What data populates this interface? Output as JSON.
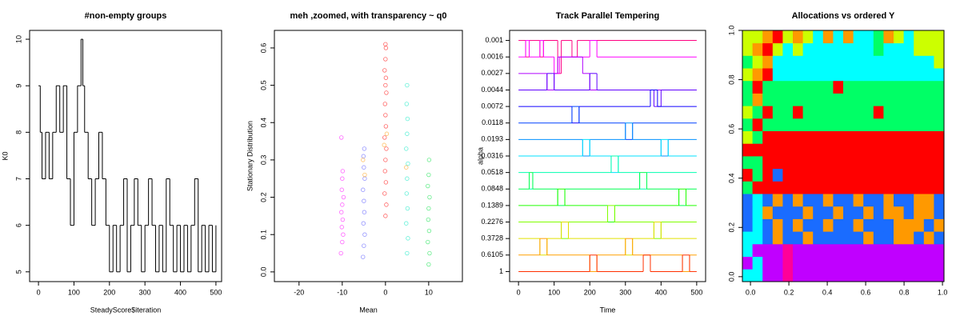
{
  "chart_data": [
    {
      "type": "line",
      "step": true,
      "title": "#non-empty groups",
      "x_label": "SteadyScore$iteration",
      "y_label": "K0",
      "color": "#000000",
      "x": [
        0,
        5,
        10,
        20,
        30,
        40,
        50,
        60,
        70,
        80,
        90,
        100,
        110,
        120,
        125,
        130,
        140,
        150,
        160,
        170,
        180,
        190,
        200,
        210,
        220,
        230,
        240,
        250,
        260,
        270,
        280,
        290,
        300,
        310,
        320,
        330,
        340,
        350,
        360,
        370,
        380,
        390,
        400,
        410,
        420,
        430,
        440,
        450,
        460,
        470,
        480,
        490,
        500
      ],
      "values": [
        9,
        8,
        7,
        8,
        7,
        8,
        9,
        8,
        9,
        7,
        6,
        8,
        9,
        10,
        9,
        8,
        7,
        6,
        7,
        8,
        7,
        6,
        5,
        6,
        5,
        6,
        7,
        5,
        6,
        7,
        6,
        5,
        6,
        7,
        6,
        5,
        6,
        5,
        7,
        6,
        5,
        6,
        5,
        6,
        5,
        6,
        7,
        5,
        6,
        5,
        6,
        5,
        6
      ],
      "xlim": [
        -25,
        516
      ],
      "ylim": [
        4.79,
        10.19
      ],
      "xticks": [
        0,
        100,
        200,
        300,
        400,
        500
      ],
      "yticks": [
        5,
        6,
        7,
        8,
        9,
        10
      ]
    },
    {
      "type": "scatter",
      "title": "meh ,zoomed, with transparency ~ q0",
      "x_label": "Mean",
      "y_label": "Stationary Distribution",
      "xlim": [
        -25.7,
        17.8
      ],
      "ylim": [
        -0.026,
        0.647
      ],
      "xticks": [
        -20,
        -10,
        0,
        10
      ],
      "yticks": [
        {
          "value": 0,
          "label": "0.0"
        },
        0.1,
        0.2,
        0.3,
        0.4,
        0.5,
        0.6
      ],
      "series": [
        {
          "color": "#ff00ff",
          "x": [
            -10.3,
            -10,
            -9.8,
            -10.1,
            -9.9,
            -10.2,
            -10,
            -9.7,
            -10.1,
            -10,
            -9.9,
            -10.2
          ],
          "values": [
            0.05,
            0.08,
            0.1,
            0.12,
            0.14,
            0.16,
            0.18,
            0.2,
            0.22,
            0.25,
            0.27,
            0.36
          ]
        },
        {
          "color": "#5050ff",
          "x": [
            -5.2,
            -5,
            -4.8,
            -5.1,
            -4.9,
            -5,
            -5.2,
            -4.8,
            -5,
            -5.1,
            -4.9
          ],
          "values": [
            0.04,
            0.07,
            0.1,
            0.13,
            0.16,
            0.19,
            0.22,
            0.25,
            0.28,
            0.31,
            0.33
          ]
        },
        {
          "color": "#ff0000",
          "x": [
            0,
            0.2,
            -0.2,
            0.1,
            -0.1,
            0,
            0.2,
            -0.2,
            0.1,
            0,
            -0.1,
            0.2,
            0,
            0.1,
            -0.2,
            0,
            0.1,
            0
          ],
          "values": [
            0.15,
            0.18,
            0.21,
            0.24,
            0.27,
            0.3,
            0.33,
            0.36,
            0.39,
            0.42,
            0.45,
            0.48,
            0.5,
            0.52,
            0.54,
            0.57,
            0.6,
            0.61
          ]
        },
        {
          "color": "#00e8c0",
          "x": [
            5,
            5.2,
            4.8,
            5.1,
            4.9,
            5,
            5.2,
            4.8,
            5,
            5.1,
            4.9,
            5
          ],
          "values": [
            0.05,
            0.09,
            0.13,
            0.17,
            0.21,
            0.25,
            0.29,
            0.33,
            0.37,
            0.41,
            0.45,
            0.5
          ]
        },
        {
          "color": "#00e040",
          "x": [
            10,
            10.2,
            9.8,
            10.1,
            9.9,
            10,
            10.2,
            9.8,
            10,
            10.1
          ],
          "values": [
            0.02,
            0.05,
            0.08,
            0.11,
            0.14,
            0.17,
            0.2,
            0.23,
            0.26,
            0.3
          ]
        },
        {
          "color": "#ff9900",
          "x": [
            -4.8,
            -5.2,
            0.3,
            -0.3,
            4.8
          ],
          "values": [
            0.26,
            0.3,
            0.37,
            0.34,
            0.28
          ]
        }
      ]
    },
    {
      "type": "line",
      "step": true,
      "y_scale": "ordinal",
      "title": "Track Parallel Tempering",
      "x_label": "Time",
      "y_label": "alpha",
      "xlim": [
        -25,
        525
      ],
      "xticks": [
        0,
        100,
        200,
        300,
        400,
        500
      ],
      "yticks": [
        0.001,
        0.0016,
        0.0027,
        0.0044,
        0.0072,
        0.0118,
        0.0193,
        0.0316,
        0.0518,
        0.0848,
        0.1389,
        0.2276,
        0.3728,
        0.6105,
        1
      ],
      "series": [
        {
          "color": "#ff0080",
          "x": [
            0,
            20,
            30,
            60,
            70,
            110,
            120,
            150,
            165,
            200,
            500
          ],
          "values": [
            0.001,
            0.0016,
            0.001,
            0.0016,
            0.001,
            0.0027,
            0.001,
            0.0016,
            0.001,
            0.001,
            0.001
          ]
        },
        {
          "color": "#ff00ff",
          "x": [
            0,
            20,
            30,
            60,
            70,
            100,
            115,
            200,
            220,
            500
          ],
          "values": [
            0.0016,
            0.001,
            0.0016,
            0.001,
            0.0016,
            0.0027,
            0.0016,
            0.001,
            0.0016,
            0.0016
          ]
        },
        {
          "color": "#b000ff",
          "x": [
            0,
            80,
            100,
            110,
            180,
            200,
            500
          ],
          "values": [
            0.0027,
            0.0044,
            0.0027,
            0.0016,
            0.0027,
            0.0044,
            0.0044
          ]
        },
        {
          "color": "#6000ff",
          "x": [
            0,
            80,
            100,
            200,
            220,
            380,
            400,
            500
          ],
          "values": [
            0.0044,
            0.0027,
            0.0044,
            0.0027,
            0.0044,
            0.0072,
            0.0044,
            0.0044
          ]
        },
        {
          "color": "#1000ff",
          "x": [
            0,
            150,
            170,
            370,
            390,
            500
          ],
          "values": [
            0.0072,
            0.0118,
            0.0072,
            0.0044,
            0.0072,
            0.0072
          ]
        },
        {
          "color": "#0040ff",
          "x": [
            0,
            150,
            170,
            300,
            320,
            500
          ],
          "values": [
            0.0118,
            0.0072,
            0.0118,
            0.0193,
            0.0118,
            0.0118
          ]
        },
        {
          "color": "#0090ff",
          "x": [
            0,
            180,
            200,
            300,
            320,
            400,
            420,
            500
          ],
          "values": [
            0.0193,
            0.0316,
            0.0193,
            0.0118,
            0.0193,
            0.0316,
            0.0193,
            0.0193
          ]
        },
        {
          "color": "#00e0ff",
          "x": [
            0,
            180,
            200,
            260,
            280,
            400,
            420,
            500
          ],
          "values": [
            0.0316,
            0.0193,
            0.0316,
            0.0518,
            0.0316,
            0.0193,
            0.0316,
            0.0316
          ]
        },
        {
          "color": "#00ffb0",
          "x": [
            0,
            30,
            40,
            260,
            280,
            340,
            360,
            500
          ],
          "values": [
            0.0518,
            0.0848,
            0.0518,
            0.0316,
            0.0518,
            0.0848,
            0.0518,
            0.0518
          ]
        },
        {
          "color": "#00ff50",
          "x": [
            0,
            30,
            40,
            110,
            130,
            340,
            360,
            450,
            470,
            500
          ],
          "values": [
            0.0848,
            0.0518,
            0.0848,
            0.1389,
            0.0848,
            0.0518,
            0.0848,
            0.1389,
            0.0848,
            0.0848
          ]
        },
        {
          "color": "#20ff00",
          "x": [
            0,
            110,
            130,
            250,
            270,
            450,
            470,
            500
          ],
          "values": [
            0.1389,
            0.0848,
            0.1389,
            0.2276,
            0.1389,
            0.0848,
            0.1389,
            0.1389
          ]
        },
        {
          "color": "#80ff00",
          "x": [
            0,
            120,
            140,
            250,
            270,
            380,
            400,
            500
          ],
          "values": [
            0.2276,
            0.3728,
            0.2276,
            0.1389,
            0.2276,
            0.3728,
            0.2276,
            0.2276
          ]
        },
        {
          "color": "#e0e000",
          "x": [
            0,
            60,
            80,
            120,
            140,
            300,
            320,
            380,
            400,
            500
          ],
          "values": [
            0.3728,
            0.6105,
            0.3728,
            0.2276,
            0.3728,
            0.6105,
            0.3728,
            0.2276,
            0.3728,
            0.3728
          ]
        },
        {
          "color": "#ffa000",
          "x": [
            0,
            60,
            80,
            200,
            220,
            300,
            320,
            460,
            480,
            500
          ],
          "values": [
            0.6105,
            0.3728,
            0.6105,
            1,
            0.6105,
            0.3728,
            0.6105,
            1,
            0.6105,
            0.6105
          ]
        },
        {
          "color": "#ff3000",
          "x": [
            0,
            200,
            220,
            350,
            370,
            460,
            480,
            500
          ],
          "values": [
            1,
            0.6105,
            1,
            0.6105,
            1,
            0.6105,
            1,
            1
          ]
        }
      ]
    },
    {
      "type": "heatmap",
      "title": "Allocations vs ordered Y",
      "xlim": [
        -0.042,
        1.008
      ],
      "ylim": [
        -0.02,
        1
      ],
      "xticks": [
        {
          "value": 0,
          "label": "0.0"
        },
        0.2,
        0.4,
        0.6,
        0.8,
        {
          "value": 1,
          "label": "1.0"
        }
      ],
      "yticks": [
        {
          "value": 0,
          "label": "0.0"
        },
        0.2,
        0.4,
        0.6,
        0.8,
        {
          "value": 1,
          "label": "1.0"
        }
      ],
      "palette": [
        "#c000ff",
        "#1a6cff",
        "#ff9900",
        "#ff0000",
        "#00ff66",
        "#00ffff",
        "#ccff00",
        "#ff0099"
      ],
      "matrix": [
        [
          5,
          5,
          0,
          0,
          7,
          0,
          0,
          0,
          0,
          0,
          0,
          0,
          0,
          0,
          0,
          0,
          0,
          0,
          0,
          0
        ],
        [
          0,
          5,
          0,
          0,
          7,
          0,
          0,
          0,
          0,
          0,
          0,
          0,
          0,
          0,
          0,
          0,
          0,
          0,
          0,
          0
        ],
        [
          5,
          0,
          0,
          0,
          7,
          0,
          0,
          0,
          0,
          0,
          0,
          0,
          0,
          0,
          0,
          0,
          0,
          0,
          0,
          0
        ],
        [
          5,
          5,
          1,
          2,
          1,
          1,
          2,
          1,
          1,
          1,
          1,
          1,
          2,
          1,
          1,
          2,
          2,
          1,
          2,
          1
        ],
        [
          1,
          5,
          1,
          2,
          1,
          2,
          1,
          1,
          2,
          1,
          1,
          2,
          1,
          1,
          1,
          2,
          2,
          2,
          1,
          2
        ],
        [
          1,
          5,
          2,
          1,
          1,
          1,
          2,
          1,
          1,
          2,
          1,
          1,
          2,
          1,
          2,
          2,
          1,
          2,
          2,
          1
        ],
        [
          1,
          5,
          1,
          2,
          1,
          2,
          1,
          1,
          2,
          1,
          1,
          2,
          1,
          1,
          2,
          1,
          1,
          2,
          2,
          1
        ],
        [
          4,
          3,
          3,
          3,
          3,
          3,
          3,
          3,
          3,
          3,
          3,
          3,
          3,
          3,
          3,
          3,
          3,
          3,
          3,
          3
        ],
        [
          3,
          4,
          3,
          1,
          3,
          3,
          3,
          3,
          3,
          3,
          3,
          3,
          3,
          3,
          3,
          3,
          3,
          3,
          3,
          3
        ],
        [
          4,
          4,
          3,
          3,
          3,
          3,
          3,
          3,
          3,
          3,
          3,
          3,
          3,
          3,
          3,
          3,
          3,
          3,
          3,
          3
        ],
        [
          3,
          3,
          3,
          3,
          3,
          3,
          3,
          3,
          3,
          3,
          3,
          3,
          3,
          3,
          3,
          3,
          3,
          3,
          3,
          3
        ],
        [
          6,
          4,
          3,
          3,
          3,
          3,
          3,
          3,
          3,
          3,
          3,
          3,
          3,
          3,
          3,
          3,
          3,
          3,
          3,
          3
        ],
        [
          4,
          3,
          4,
          4,
          4,
          4,
          4,
          4,
          4,
          4,
          4,
          4,
          4,
          4,
          4,
          4,
          4,
          4,
          4,
          4
        ],
        [
          6,
          4,
          3,
          4,
          4,
          3,
          4,
          4,
          4,
          4,
          4,
          4,
          4,
          3,
          4,
          4,
          4,
          4,
          4,
          4
        ],
        [
          4,
          2,
          4,
          4,
          4,
          4,
          4,
          4,
          4,
          4,
          4,
          4,
          4,
          4,
          4,
          4,
          4,
          4,
          4,
          4
        ],
        [
          4,
          3,
          4,
          4,
          4,
          4,
          4,
          4,
          4,
          3,
          4,
          4,
          4,
          4,
          4,
          4,
          4,
          4,
          4,
          4
        ],
        [
          6,
          2,
          3,
          5,
          5,
          5,
          5,
          5,
          5,
          5,
          5,
          5,
          5,
          5,
          5,
          5,
          5,
          5,
          5,
          5
        ],
        [
          4,
          6,
          2,
          5,
          5,
          5,
          5,
          5,
          5,
          5,
          5,
          5,
          5,
          5,
          5,
          5,
          5,
          5,
          5,
          6
        ],
        [
          6,
          2,
          3,
          6,
          5,
          6,
          5,
          5,
          5,
          5,
          5,
          5,
          5,
          4,
          5,
          5,
          5,
          6,
          6,
          6
        ],
        [
          6,
          6,
          2,
          3,
          6,
          2,
          6,
          5,
          2,
          5,
          2,
          5,
          5,
          4,
          2,
          6,
          5,
          6,
          6,
          6
        ]
      ]
    }
  ]
}
